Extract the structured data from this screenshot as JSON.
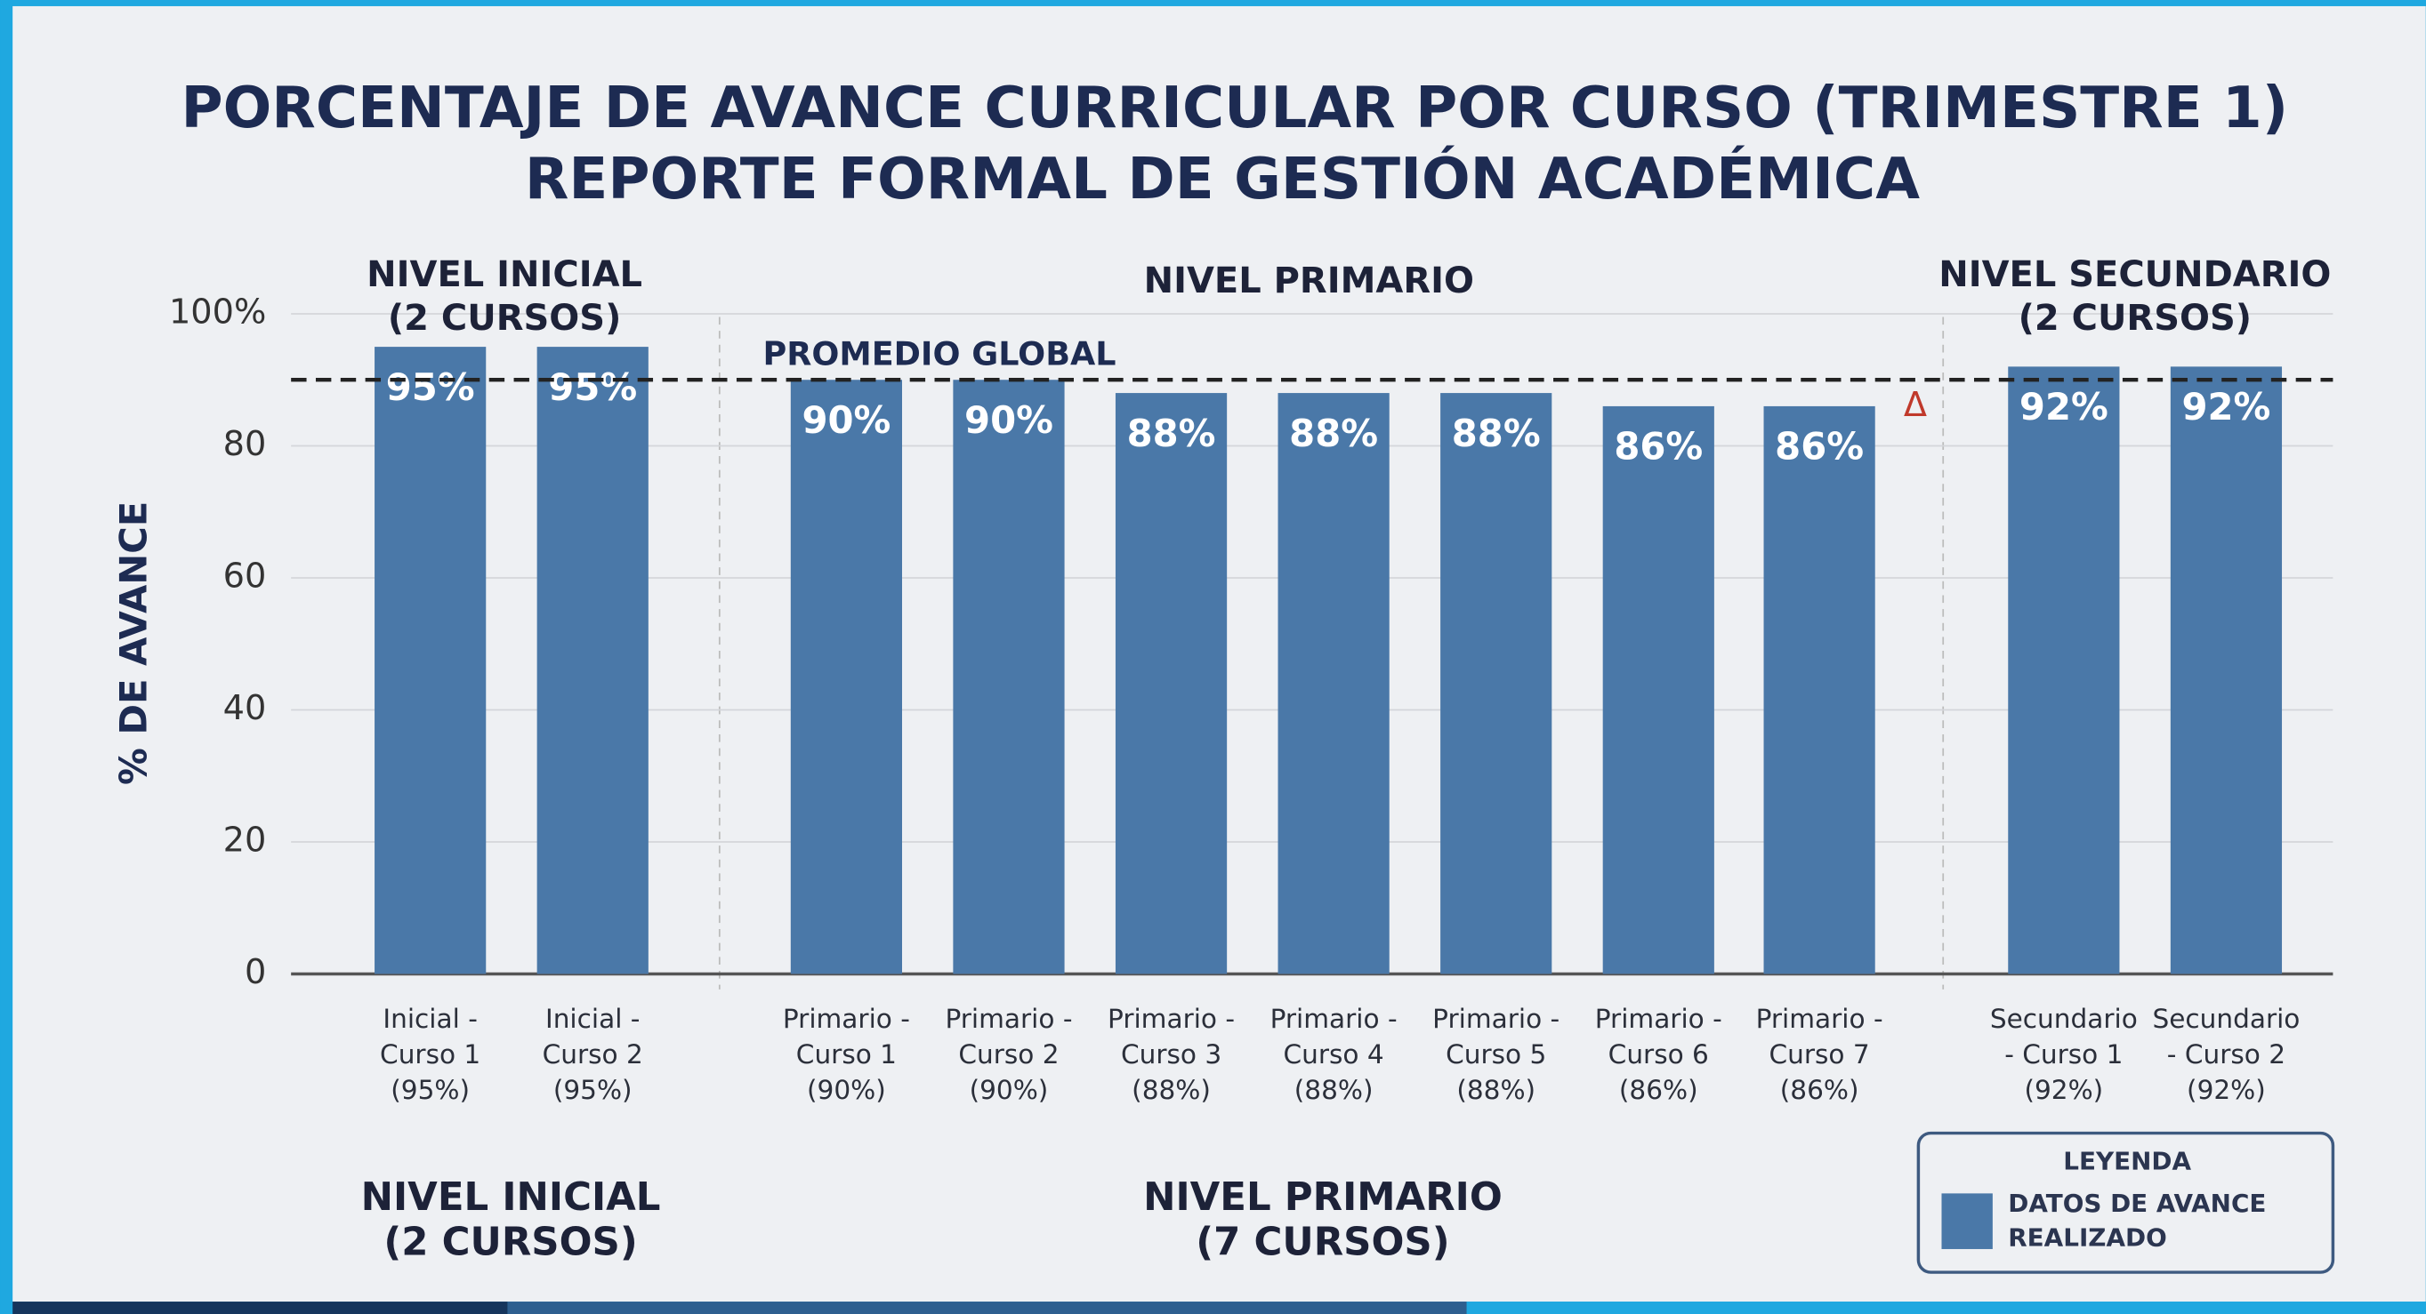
{
  "chart_data": {
    "type": "bar",
    "title": "PORCENTAJE DE AVANCE CURRICULAR POR CURSO (TRIMESTRE 1)",
    "subtitle": "REPORTE FORMAL DE GESTIÓN ACADÉMICA",
    "y_label": "% DE AVANCE",
    "categories": [
      [
        "Inicial -",
        "Curso 1",
        "(95%)"
      ],
      [
        "Inicial -",
        "Curso 2",
        "(95%)"
      ],
      [
        "Primario -",
        "Curso 1",
        "(90%)"
      ],
      [
        "Primario -",
        "Curso 2",
        "(90%)"
      ],
      [
        "Primario -",
        "Curso 3",
        "(88%)"
      ],
      [
        "Primario -",
        "Curso 4",
        "(88%)"
      ],
      [
        "Primario -",
        "Curso 5",
        "(88%)"
      ],
      [
        "Primario -",
        "Curso 6",
        "(86%)"
      ],
      [
        "Primario -",
        "Curso 7",
        "(86%)"
      ],
      [
        "Secundario",
        "- Curso 1",
        "(92%)"
      ],
      [
        "Secundario",
        "- Curso 2",
        "(92%)"
      ]
    ],
    "series": [
      {
        "name": "DATOS DE AVANCE REALIZADO",
        "color": "#4a78a8",
        "values": [
          95,
          95,
          90,
          90,
          88,
          88,
          88,
          86,
          86,
          92,
          92
        ],
        "value_labels": [
          "95%",
          "95%",
          "90%",
          "90%",
          "88%",
          "88%",
          "88%",
          "86%",
          "86%",
          "92%",
          "92%"
        ]
      }
    ],
    "ylim": [
      0,
      100
    ],
    "yticks": [
      0,
      20,
      40,
      60,
      80,
      {
        "value": 100,
        "label": "100%"
      }
    ],
    "grid": true,
    "reference_line": {
      "value": 90,
      "label": "PROMEDIO GLOBAL"
    },
    "marker_annotation": "Δ",
    "groups": [
      [
        "NIVEL INICIAL",
        "(2 CURSOS)"
      ],
      [
        "NIVEL PRIMARIO"
      ],
      [
        "NIVEL SECUNDARIO",
        "(2 CURSOS)"
      ]
    ],
    "footer_groups": [
      [
        "NIVEL INICIAL",
        "(2 CURSOS)"
      ],
      [
        "NIVEL PRIMARIO",
        "(7 CURSOS)"
      ]
    ],
    "legend_title": "LEYENDA",
    "legend": "bottom-right"
  }
}
